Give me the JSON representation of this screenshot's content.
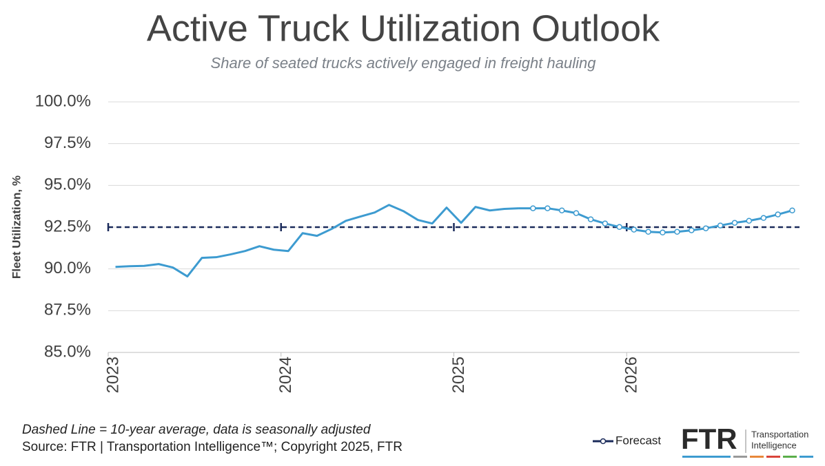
{
  "chart_data": {
    "type": "line",
    "title": "Active Truck Utilization Outlook",
    "subtitle": "Share of seated trucks actively engaged in freight hauling",
    "y_label": "Fleet Utilization, %",
    "xlim": [
      2023,
      2027
    ],
    "xticks": [
      2023,
      2024,
      2025,
      2026
    ],
    "ylim": [
      85,
      100
    ],
    "yticks": [
      {
        "value": 85,
        "label": "85.0%"
      },
      {
        "value": 87.5,
        "label": "87.5%"
      },
      {
        "value": 90,
        "label": "90.0%"
      },
      {
        "value": 92.5,
        "label": "92.5%"
      },
      {
        "value": 95,
        "label": "95.0%"
      },
      {
        "value": 97.5,
        "label": "97.5%"
      },
      {
        "value": 100,
        "label": "100.0%"
      }
    ],
    "grid": true,
    "reference_line": {
      "value": 92.5,
      "color": "#1a2a5a"
    },
    "series": [
      {
        "color": "#3d9bd0",
        "markers": false,
        "x": [
          2023.042,
          2023.125,
          2023.208,
          2023.292,
          2023.375,
          2023.458,
          2023.542,
          2023.625,
          2023.708,
          2023.792,
          2023.875,
          2023.958,
          2024.042,
          2024.125,
          2024.208,
          2024.292,
          2024.375,
          2024.458,
          2024.542,
          2024.625,
          2024.708,
          2024.792,
          2024.875,
          2024.958,
          2025.042,
          2025.125,
          2025.208,
          2025.292,
          2025.375
        ],
        "values": [
          90.12,
          90.16,
          90.18,
          90.29,
          90.08,
          89.55,
          90.66,
          90.7,
          90.87,
          91.07,
          91.36,
          91.15,
          91.07,
          92.14,
          91.98,
          92.39,
          92.88,
          93.13,
          93.38,
          93.83,
          93.46,
          92.93,
          92.72,
          93.67,
          92.76,
          93.71,
          93.5,
          93.59,
          93.63
        ]
      },
      {
        "name": "Forecast",
        "color": "#3d9bd0",
        "markers": true,
        "x": [
          2025.458,
          2025.542,
          2025.625,
          2025.708,
          2025.792,
          2025.875,
          2025.958,
          2026.042,
          2026.125,
          2026.208,
          2026.292,
          2026.375,
          2026.458,
          2026.542,
          2026.625,
          2026.708,
          2026.792,
          2026.875,
          2026.958
        ],
        "values": [
          93.63,
          93.63,
          93.5,
          93.34,
          92.97,
          92.72,
          92.51,
          92.35,
          92.22,
          92.18,
          92.22,
          92.31,
          92.43,
          92.6,
          92.76,
          92.88,
          93.05,
          93.26,
          93.5
        ]
      }
    ],
    "note": "Dashed Line = 10-year average, data is seasonally adjusted",
    "source": "Source: FTR | Transportation Intelligence™; Copyright 2025, FTR",
    "logo": {
      "name": "FTR",
      "line1": "Transportation",
      "line2": "Intelligence"
    }
  }
}
